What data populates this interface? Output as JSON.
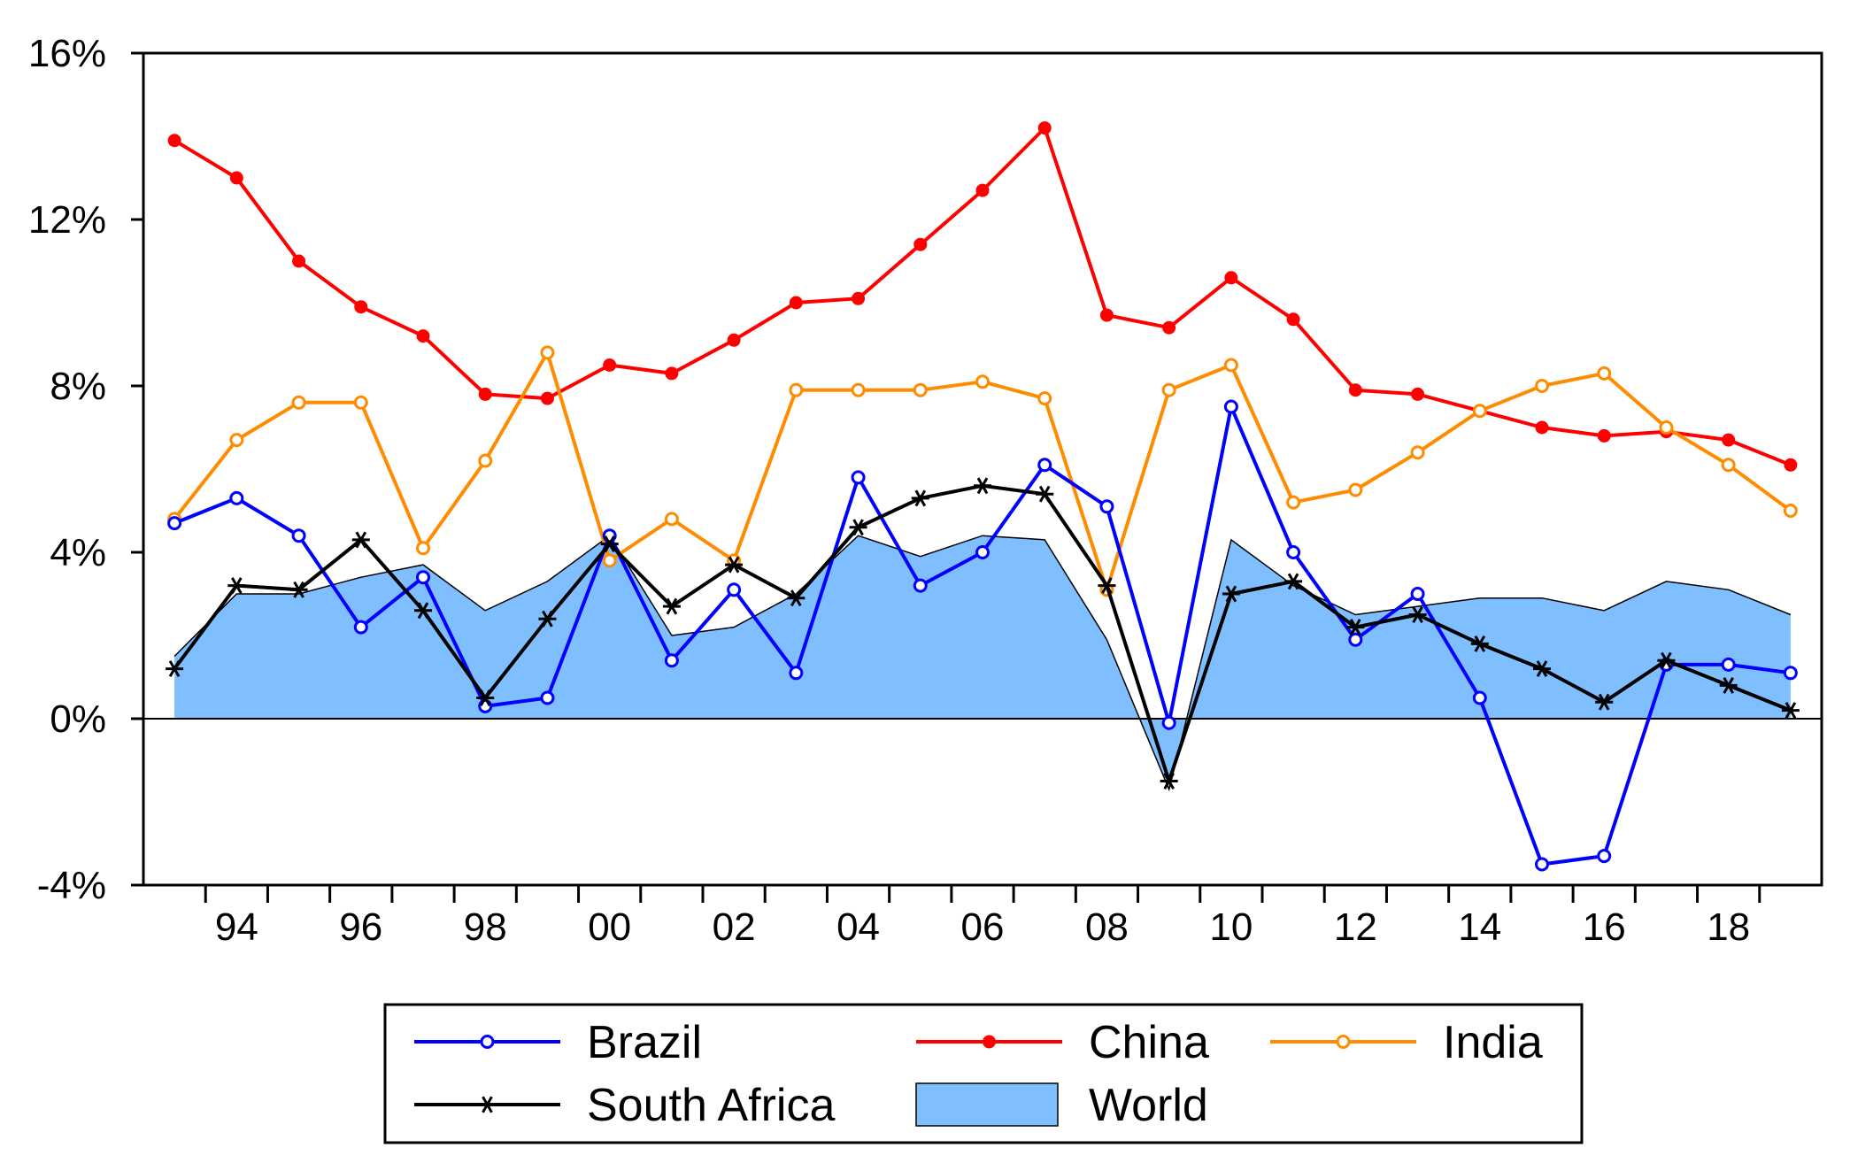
{
  "chart_data": {
    "type": "line",
    "title": "",
    "xlabel": "",
    "ylabel": "",
    "x": [
      1993,
      1994,
      1995,
      1996,
      1997,
      1998,
      1999,
      2000,
      2001,
      2002,
      2003,
      2004,
      2005,
      2006,
      2007,
      2008,
      2009,
      2010,
      2011,
      2012,
      2013,
      2014,
      2015,
      2016,
      2017,
      2018,
      2019
    ],
    "xlim": [
      1993,
      2019
    ],
    "ylim": [
      -4,
      16
    ],
    "y_ticks": [
      -4,
      0,
      4,
      8,
      12,
      16
    ],
    "y_tick_labels": [
      "-4%",
      "0%",
      "4%",
      "8%",
      "12%",
      "16%"
    ],
    "x_ticks": [
      1994,
      1996,
      1998,
      2000,
      2002,
      2004,
      2006,
      2008,
      2010,
      2012,
      2014,
      2016,
      2018
    ],
    "x_tick_labels": [
      "94",
      "96",
      "98",
      "00",
      "02",
      "04",
      "06",
      "08",
      "10",
      "12",
      "14",
      "16",
      "18"
    ],
    "grid": false,
    "legend_position": "bottom",
    "series": [
      {
        "name": "World",
        "style": "area",
        "color": "#7fbfff",
        "values": [
          1.5,
          3.0,
          3.0,
          3.4,
          3.7,
          2.6,
          3.3,
          4.4,
          2.0,
          2.2,
          3.0,
          4.4,
          3.9,
          4.4,
          4.3,
          1.9,
          -1.7,
          4.3,
          3.2,
          2.5,
          2.7,
          2.9,
          2.9,
          2.6,
          3.3,
          3.1,
          2.5
        ]
      },
      {
        "name": "Brazil",
        "style": "line",
        "marker": "open-circle",
        "color": "#0000ff",
        "values": [
          4.7,
          5.3,
          4.4,
          2.2,
          3.4,
          0.3,
          0.5,
          4.4,
          1.4,
          3.1,
          1.1,
          5.8,
          3.2,
          4.0,
          6.1,
          5.1,
          -0.1,
          7.5,
          4.0,
          1.9,
          3.0,
          0.5,
          -3.5,
          -3.3,
          1.3,
          1.3,
          1.1
        ]
      },
      {
        "name": "China",
        "style": "line",
        "marker": "filled-circle",
        "color": "#ff0000",
        "values": [
          13.9,
          13.0,
          11.0,
          9.9,
          9.2,
          7.8,
          7.7,
          8.5,
          8.3,
          9.1,
          10.0,
          10.1,
          11.4,
          12.7,
          14.2,
          9.7,
          9.4,
          10.6,
          9.6,
          7.9,
          7.8,
          7.4,
          7.0,
          6.8,
          6.9,
          6.7,
          6.1
        ]
      },
      {
        "name": "India",
        "style": "line",
        "marker": "open-circle",
        "color": "#ff8c00",
        "values": [
          4.8,
          6.7,
          7.6,
          7.6,
          4.1,
          6.2,
          8.8,
          3.8,
          4.8,
          3.8,
          7.9,
          7.9,
          7.9,
          8.1,
          7.7,
          3.1,
          7.9,
          8.5,
          5.2,
          5.5,
          6.4,
          7.4,
          8.0,
          8.3,
          7.0,
          6.1,
          5.0
        ]
      },
      {
        "name": "South Africa",
        "style": "line",
        "marker": "asterisk",
        "color": "#000000",
        "values": [
          1.2,
          3.2,
          3.1,
          4.3,
          2.6,
          0.5,
          2.4,
          4.2,
          2.7,
          3.7,
          2.9,
          4.6,
          5.3,
          5.6,
          5.4,
          3.2,
          -1.5,
          3.0,
          3.3,
          2.2,
          2.5,
          1.8,
          1.2,
          0.4,
          1.4,
          0.8,
          0.2
        ]
      }
    ],
    "legend": [
      {
        "label": "Brazil",
        "series": "Brazil"
      },
      {
        "label": "China",
        "series": "China"
      },
      {
        "label": "India",
        "series": "India"
      },
      {
        "label": "South Africa",
        "series": "South Africa"
      },
      {
        "label": "World",
        "series": "World"
      }
    ]
  }
}
